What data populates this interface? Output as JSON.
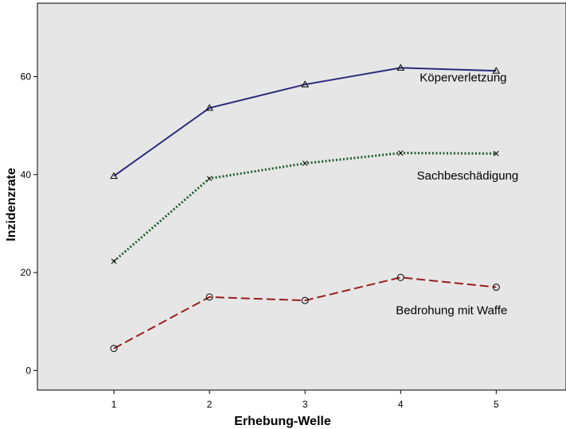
{
  "chart_data": {
    "type": "line",
    "title": "",
    "xlabel": "Erhebung-Welle",
    "ylabel": "Inzidenzrate",
    "x": [
      1,
      2,
      3,
      4,
      5
    ],
    "xlim": [
      0.2,
      5.73
    ],
    "ylim": [
      -4,
      75
    ],
    "yticks": [
      0,
      20,
      40,
      60
    ],
    "grid": false,
    "legend": "none",
    "colors": {
      "plot_bg": "#e6e6e6",
      "frame": "#000000"
    },
    "series": [
      {
        "name": "Köperverletzung",
        "values": [
          39.7,
          53.6,
          58.4,
          61.8,
          61.2
        ],
        "color": "#2a2a7a",
        "dash": "solid",
        "marker": "triangle",
        "label_at": [
          4.2,
          59
        ]
      },
      {
        "name": "Sachbeschädigung",
        "values": [
          22.3,
          39.2,
          42.3,
          44.4,
          44.3
        ],
        "color": "#1d5b2d",
        "dash": "dotted",
        "marker": "x",
        "label_at": [
          4.17,
          39
        ]
      },
      {
        "name": "Bedrohung mit Waffe",
        "values": [
          4.5,
          15.0,
          14.3,
          19.0,
          17.0
        ],
        "color": "#9b1c1c",
        "dash": "dashed",
        "marker": "circle",
        "label_at": [
          3.95,
          11.5
        ]
      }
    ]
  }
}
